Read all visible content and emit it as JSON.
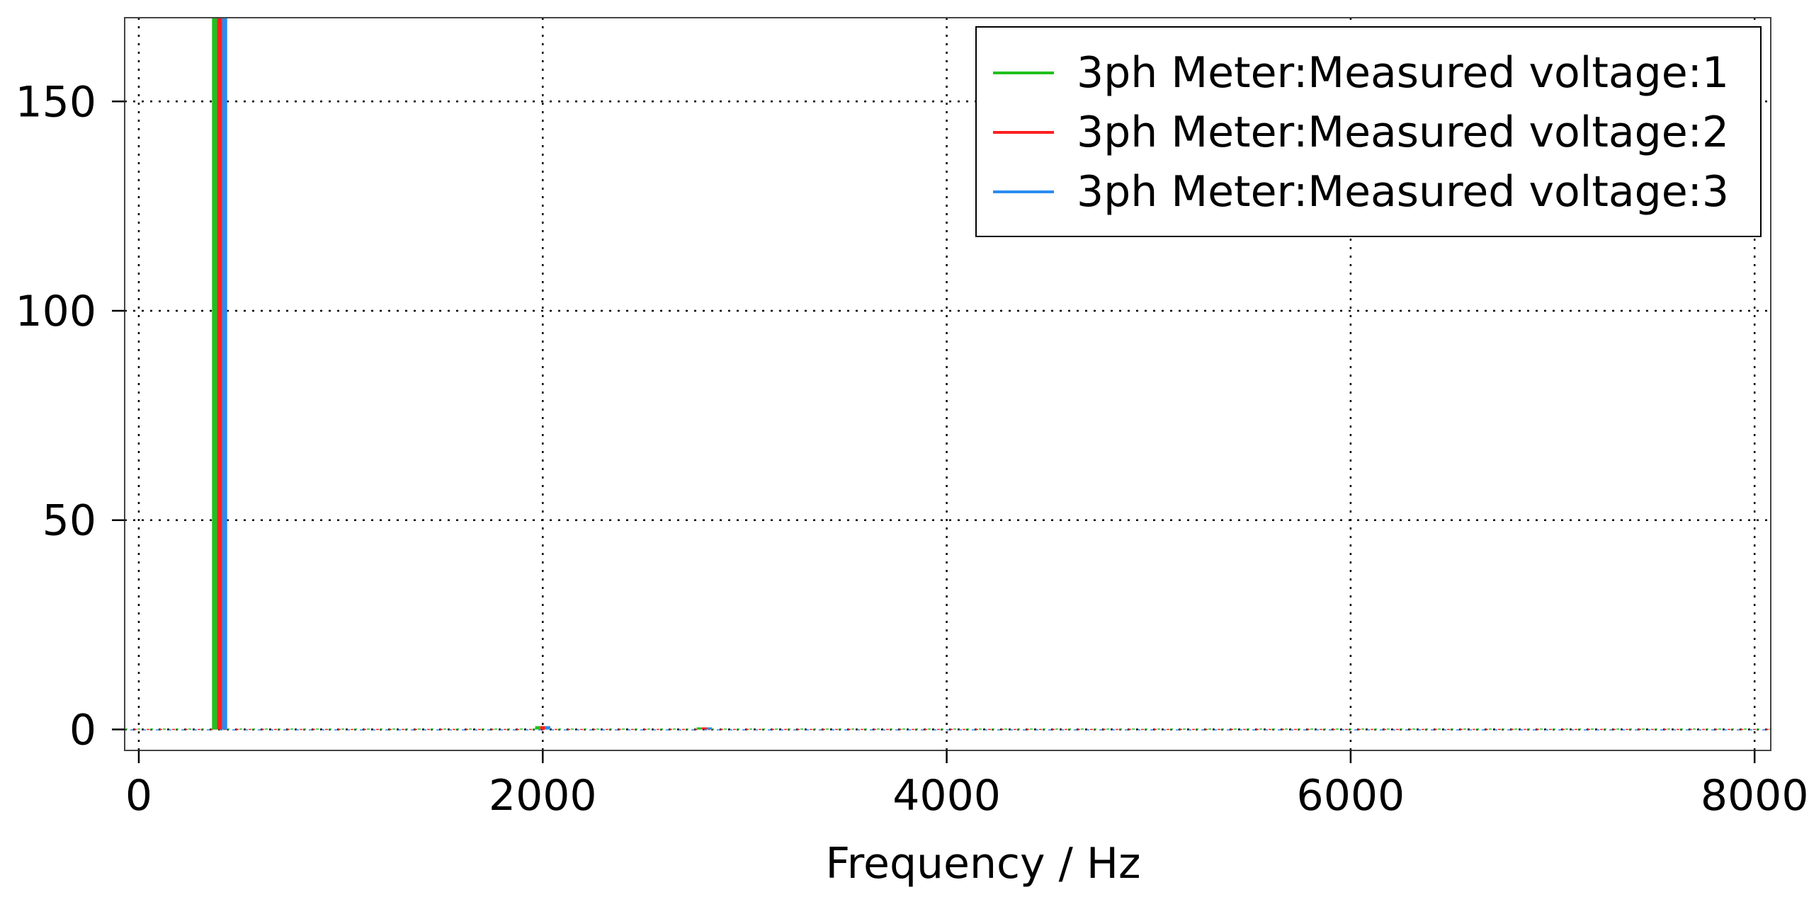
{
  "chart_data": {
    "type": "bar",
    "title": "",
    "xlabel": "Frequency / Hz",
    "ylabel": "",
    "xlim": [
      -70,
      8080
    ],
    "ylim": [
      -5,
      170
    ],
    "xticks": [
      0,
      2000,
      4000,
      6000,
      8000
    ],
    "yticks": [
      0,
      50,
      100,
      150
    ],
    "grid": true,
    "legend_position": "top-right",
    "bin_width": 50,
    "series": [
      {
        "name": "3ph Meter:Measured voltage:1",
        "color": "#22c01e",
        "x": [
          400,
          2000,
          2800
        ],
        "values": [
          170,
          0.8,
          0.3
        ]
      },
      {
        "name": "3ph Meter:Measured voltage:2",
        "color": "#ff2020",
        "x": [
          400,
          2000,
          2800
        ],
        "values": [
          170,
          0.8,
          0.3
        ]
      },
      {
        "name": "3ph Meter:Measured voltage:3",
        "color": "#2a8cf0",
        "x": [
          400,
          2000,
          2800
        ],
        "values": [
          170,
          0.8,
          0.3
        ]
      }
    ]
  }
}
